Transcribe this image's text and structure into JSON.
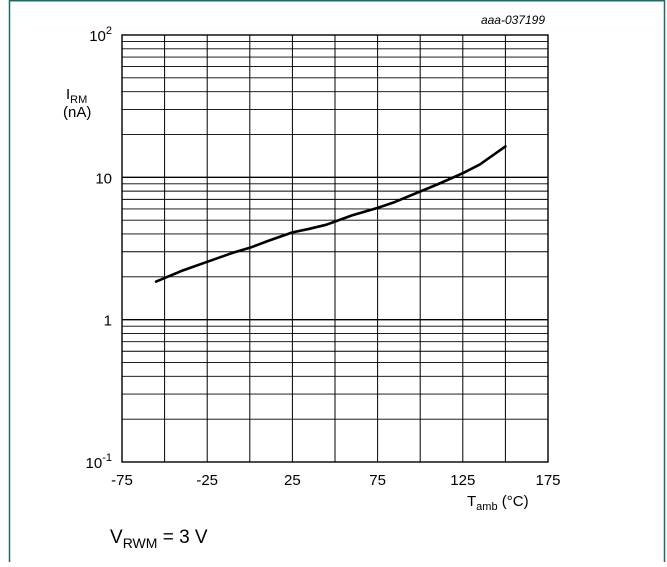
{
  "figure_code": "aaa-037199",
  "condition": {
    "main": "V",
    "sub": "RWM",
    "rest": " = 3 V"
  },
  "y_axis_label": {
    "main": "I",
    "sub": "RM",
    "unit": "(nA)"
  },
  "x_axis_label": {
    "main": "T",
    "sub": "amb",
    "unit": " (°C)"
  },
  "y_tick_labels": [
    {
      "base": "10",
      "exp": "2",
      "value": 100
    },
    {
      "base": "10",
      "exp": "",
      "value": 10
    },
    {
      "base": "1",
      "exp": "",
      "value": 1
    },
    {
      "base": "10",
      "exp": "-1",
      "value": 0.1
    }
  ],
  "x_tick_labels": [
    "-75",
    "-25",
    "25",
    "75",
    "125",
    "175"
  ],
  "colors": {
    "frame": "#1a6b6b",
    "grid": "#000000",
    "curve": "#000000"
  },
  "chart_data": {
    "type": "line",
    "title": "",
    "xlabel": "Tamb (°C)",
    "ylabel": "IRM (nA)",
    "xlim": [
      -75,
      175
    ],
    "ylim": [
      0.1,
      100
    ],
    "y_scale": "log",
    "x_ticks": [
      -75,
      -25,
      25,
      75,
      125,
      175
    ],
    "x_grid_step": 25,
    "grid": true,
    "legend": "none",
    "series": [
      {
        "x": [
          -55,
          -40,
          -25,
          -10,
          0,
          10,
          25,
          35,
          45,
          60,
          75,
          85,
          100,
          110,
          125,
          135,
          150
        ],
        "y": [
          1.85,
          2.2,
          2.55,
          2.95,
          3.2,
          3.55,
          4.1,
          4.35,
          4.65,
          5.4,
          6.1,
          6.7,
          7.95,
          8.9,
          10.7,
          12.3,
          16.5
        ]
      }
    ]
  }
}
